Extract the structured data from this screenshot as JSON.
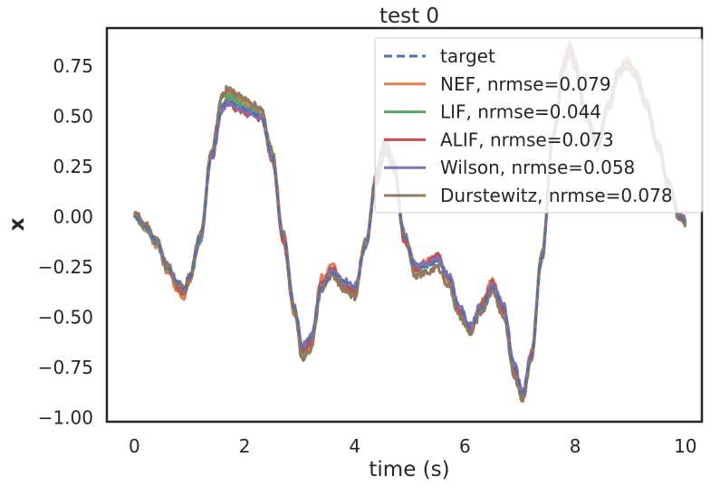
{
  "chart_data": {
    "type": "line",
    "title": "test 0",
    "xlabel": "time (s)",
    "ylabel": "x",
    "xlim": [
      -0.5,
      10.3
    ],
    "ylim": [
      -1.02,
      0.94
    ],
    "xticks": [
      0,
      2,
      4,
      6,
      8,
      10
    ],
    "yticks": [
      -1.0,
      -0.75,
      -0.5,
      -0.25,
      0.0,
      0.25,
      0.5,
      0.75
    ],
    "xtick_labels": [
      "0",
      "2",
      "4",
      "6",
      "8",
      "10"
    ],
    "ytick_labels": [
      "−1.00",
      "−0.75",
      "−0.50",
      "−0.25",
      "0.00",
      "0.25",
      "0.50",
      "0.75"
    ],
    "grid": false,
    "legend_position": "top-right",
    "x": [
      0,
      0.2,
      0.4,
      0.6,
      0.8,
      0.9,
      1.0,
      1.2,
      1.4,
      1.6,
      1.7,
      1.9,
      2.1,
      2.3,
      2.5,
      2.7,
      2.9,
      3.05,
      3.2,
      3.4,
      3.6,
      3.8,
      4.0,
      4.2,
      4.4,
      4.55,
      4.7,
      4.9,
      5.1,
      5.3,
      5.5,
      5.7,
      5.9,
      6.1,
      6.3,
      6.5,
      6.7,
      6.9,
      7.05,
      7.2,
      7.4,
      7.6,
      7.8,
      7.9,
      8.0,
      8.2,
      8.4,
      8.6,
      8.8,
      8.95,
      9.1,
      9.3,
      9.5,
      9.7,
      9.9,
      10.0
    ],
    "series": [
      {
        "name": "target",
        "style": "dashed",
        "color": "#4c72b0",
        "values": [
          0.0,
          -0.05,
          -0.12,
          -0.25,
          -0.33,
          -0.36,
          -0.3,
          -0.1,
          0.3,
          0.55,
          0.58,
          0.55,
          0.52,
          0.5,
          0.3,
          -0.1,
          -0.45,
          -0.65,
          -0.6,
          -0.35,
          -0.28,
          -0.32,
          -0.35,
          -0.15,
          0.2,
          0.35,
          0.25,
          -0.1,
          -0.25,
          -0.25,
          -0.22,
          -0.3,
          -0.45,
          -0.55,
          -0.45,
          -0.35,
          -0.45,
          -0.75,
          -0.88,
          -0.7,
          -0.2,
          0.4,
          0.75,
          0.83,
          0.75,
          0.5,
          0.35,
          0.55,
          0.72,
          0.76,
          0.7,
          0.55,
          0.35,
          0.15,
          0.0,
          -0.02
        ]
      },
      {
        "name": "NEF, nrmse=0.079",
        "color": "#dd8452",
        "values": [
          0.01,
          -0.06,
          -0.14,
          -0.27,
          -0.37,
          -0.4,
          -0.32,
          -0.12,
          0.32,
          0.6,
          0.62,
          0.58,
          0.55,
          0.52,
          0.28,
          -0.12,
          -0.48,
          -0.7,
          -0.63,
          -0.3,
          -0.24,
          -0.35,
          -0.38,
          -0.12,
          0.22,
          0.4,
          0.28,
          -0.12,
          -0.27,
          -0.22,
          -0.2,
          -0.32,
          -0.48,
          -0.57,
          -0.42,
          -0.32,
          -0.48,
          -0.78,
          -0.9,
          -0.68,
          -0.18,
          0.42,
          0.78,
          0.86,
          0.78,
          0.52,
          0.37,
          0.57,
          0.74,
          0.78,
          0.72,
          0.57,
          0.37,
          0.17,
          0.01,
          -0.03
        ]
      },
      {
        "name": "LIF, nrmse=0.044",
        "color": "#55a868",
        "values": [
          0.0,
          -0.05,
          -0.13,
          -0.26,
          -0.34,
          -0.37,
          -0.31,
          -0.11,
          0.3,
          0.56,
          0.6,
          0.56,
          0.53,
          0.51,
          0.3,
          -0.1,
          -0.46,
          -0.68,
          -0.61,
          -0.34,
          -0.27,
          -0.33,
          -0.36,
          -0.14,
          0.21,
          0.36,
          0.26,
          -0.1,
          -0.26,
          -0.24,
          -0.21,
          -0.3,
          -0.46,
          -0.56,
          -0.44,
          -0.34,
          -0.46,
          -0.76,
          -0.89,
          -0.7,
          -0.2,
          0.41,
          0.76,
          0.84,
          0.76,
          0.51,
          0.36,
          0.56,
          0.73,
          0.77,
          0.71,
          0.56,
          0.36,
          0.16,
          0.0,
          -0.02
        ]
      },
      {
        "name": "ALIF, nrmse=0.073",
        "color": "#c44e52",
        "values": [
          0.02,
          -0.04,
          -0.12,
          -0.25,
          -0.35,
          -0.38,
          -0.3,
          -0.09,
          0.31,
          0.54,
          0.57,
          0.53,
          0.51,
          0.49,
          0.29,
          -0.11,
          -0.47,
          -0.66,
          -0.62,
          -0.33,
          -0.26,
          -0.34,
          -0.37,
          -0.13,
          0.23,
          0.38,
          0.27,
          -0.11,
          -0.26,
          -0.23,
          -0.19,
          -0.31,
          -0.47,
          -0.55,
          -0.43,
          -0.33,
          -0.47,
          -0.77,
          -0.87,
          -0.69,
          -0.19,
          0.4,
          0.77,
          0.84,
          0.76,
          0.51,
          0.36,
          0.56,
          0.73,
          0.77,
          0.71,
          0.56,
          0.36,
          0.16,
          0.0,
          -0.01
        ]
      },
      {
        "name": "Wilson, nrmse=0.058",
        "color": "#8172b3",
        "values": [
          0.01,
          -0.05,
          -0.12,
          -0.24,
          -0.33,
          -0.36,
          -0.29,
          -0.1,
          0.29,
          0.54,
          0.57,
          0.54,
          0.52,
          0.5,
          0.3,
          -0.09,
          -0.44,
          -0.64,
          -0.59,
          -0.34,
          -0.27,
          -0.32,
          -0.34,
          -0.14,
          0.2,
          0.35,
          0.25,
          -0.09,
          -0.24,
          -0.24,
          -0.21,
          -0.29,
          -0.44,
          -0.54,
          -0.44,
          -0.34,
          -0.44,
          -0.74,
          -0.87,
          -0.7,
          -0.21,
          0.4,
          0.74,
          0.82,
          0.75,
          0.5,
          0.35,
          0.55,
          0.72,
          0.76,
          0.7,
          0.55,
          0.35,
          0.15,
          0.0,
          -0.02
        ]
      },
      {
        "name": "Durstewitz, nrmse=0.078",
        "color": "#937860",
        "values": [
          0.02,
          -0.04,
          -0.11,
          -0.24,
          -0.34,
          -0.37,
          -0.29,
          -0.08,
          0.33,
          0.61,
          0.64,
          0.6,
          0.57,
          0.54,
          0.33,
          -0.08,
          -0.44,
          -0.72,
          -0.66,
          -0.36,
          -0.29,
          -0.36,
          -0.4,
          -0.12,
          0.18,
          0.32,
          0.24,
          -0.08,
          -0.29,
          -0.28,
          -0.25,
          -0.34,
          -0.5,
          -0.58,
          -0.47,
          -0.37,
          -0.5,
          -0.8,
          -0.91,
          -0.71,
          -0.18,
          0.39,
          0.74,
          0.82,
          0.74,
          0.49,
          0.34,
          0.54,
          0.71,
          0.75,
          0.69,
          0.54,
          0.34,
          0.14,
          -0.01,
          -0.03
        ]
      }
    ]
  }
}
